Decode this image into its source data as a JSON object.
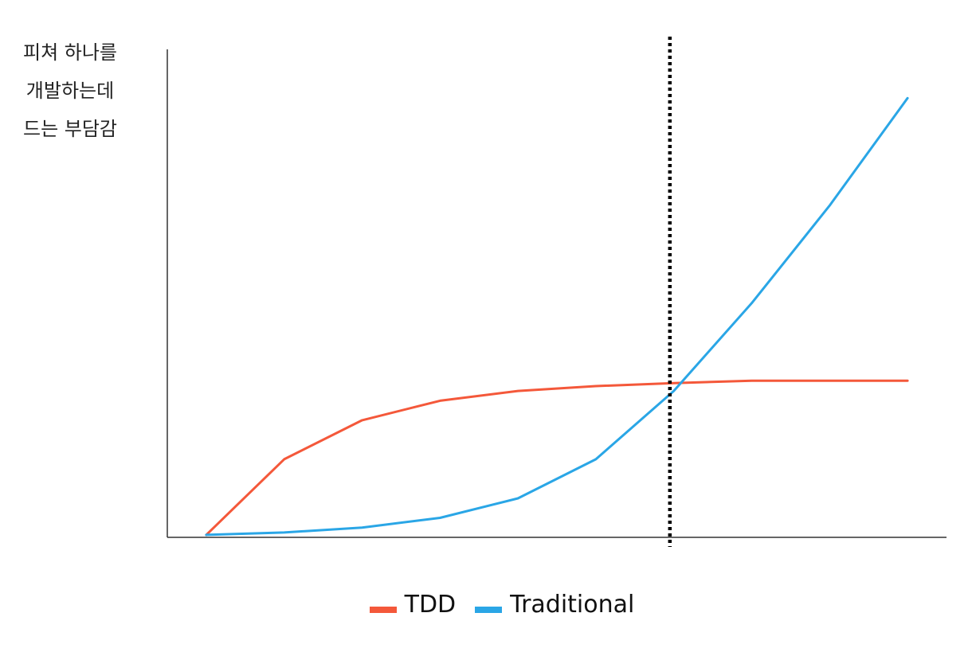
{
  "chart_data": {
    "type": "line",
    "title": "",
    "xlabel": "",
    "ylabel_lines": [
      "피쳐 하나를",
      "개발하는데",
      "드는 부담감"
    ],
    "x": [
      0,
      1,
      2,
      3,
      4,
      5,
      6,
      7,
      8,
      9
    ],
    "xlim": [
      -0.5,
      9.5
    ],
    "ylim": [
      0,
      100
    ],
    "series": [
      {
        "name": "TDD",
        "color": "#f4583a",
        "values": [
          0.5,
          16,
          24,
          28,
          30,
          31,
          31.6,
          32.1,
          32.1,
          32.1
        ]
      },
      {
        "name": "Traditional",
        "color": "#2aa6e6",
        "values": [
          0.5,
          1,
          2,
          4,
          8,
          16,
          30,
          48,
          68,
          90
        ]
      }
    ],
    "vline": {
      "x": 5.95,
      "style": "dotted",
      "color": "#000000"
    },
    "legend_position": "bottom-center",
    "grid": false
  }
}
